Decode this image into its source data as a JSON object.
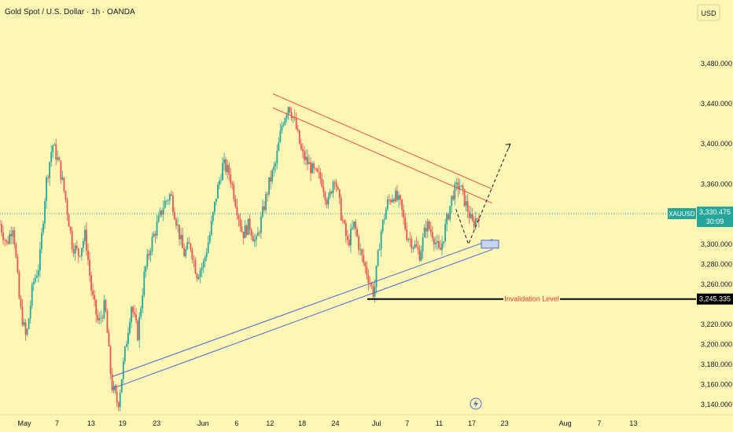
{
  "header": {
    "title": "Gold Spot / U.S. Dollar · 1h · OANDA",
    "currency_button": "USD"
  },
  "chart_data": {
    "type": "candlestick",
    "title": "Gold Spot / U.S. Dollar · 1h · OANDA",
    "ylim": [
      3130,
      3520
    ],
    "y_ticks": [
      3480,
      3440,
      3400,
      3360,
      3300,
      3280,
      3260,
      3220,
      3200,
      3180,
      3160,
      3140
    ],
    "y_tick_labels": [
      "3,480.000",
      "3,440.000",
      "3,400.000",
      "3,360.000",
      "3,300.000",
      "3,280.000",
      "3,260.000",
      "3,220.000",
      "3,200.000",
      "3,180.000",
      "3,160.000",
      "3,140.000"
    ],
    "x_tick_labels": [
      "May",
      "7",
      "13",
      "19",
      "23",
      "Jun",
      "6",
      "12",
      "18",
      "24",
      "Jul",
      "7",
      "11",
      "17",
      "23",
      "Aug",
      "7",
      "13"
    ],
    "price_tag": {
      "symbol": "XAUUSD",
      "value": "3,330.475",
      "countdown": "30:09",
      "level": 3330.475
    },
    "invalidation": {
      "label": "Invalidation Level",
      "value_label": "3,245.335",
      "level": 3245.335
    },
    "grid": false,
    "colors": {
      "up": "#26a69a",
      "down": "#ef5350",
      "resistance": "#ef5350",
      "support": "#4a6ad4",
      "background": "#fef6b4"
    },
    "series": [
      {
        "values": [
          3320,
          3300,
          3320,
          3240,
          3205,
          3260,
          3280,
          3360,
          3400,
          3380,
          3345,
          3300,
          3290,
          3310,
          3250,
          3220,
          3240,
          3160,
          3140,
          3190,
          3240,
          3210,
          3270,
          3300,
          3320,
          3340,
          3350,
          3320,
          3290,
          3300,
          3270,
          3280,
          3310,
          3350,
          3380,
          3370,
          3340,
          3310,
          3320,
          3300,
          3330,
          3360,
          3380,
          3420,
          3440,
          3420,
          3390,
          3380,
          3370,
          3365,
          3340,
          3370,
          3330,
          3300,
          3320,
          3290,
          3270,
          3250,
          3310,
          3340,
          3350,
          3340,
          3310,
          3300,
          3290,
          3320,
          3310,
          3290,
          3320,
          3350,
          3360,
          3340,
          3320,
          3330
        ]
      }
    ],
    "projection": [
      3300,
      3400
    ],
    "resistance_line": {
      "x": [
        0.392,
        0.707
      ],
      "y": [
        3450,
        3355
      ]
    },
    "support_line": {
      "x": [
        0.161,
        0.708
      ],
      "y": [
        3160,
        3305
      ]
    }
  }
}
